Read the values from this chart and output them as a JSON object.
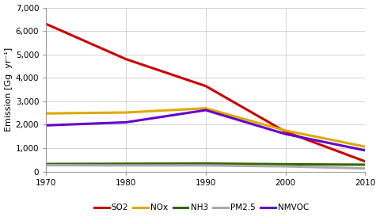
{
  "years": [
    1970,
    1980,
    1990,
    2000,
    2010
  ],
  "SO2": [
    6300,
    4800,
    3650,
    1700,
    430
  ],
  "NOx": [
    2480,
    2520,
    2700,
    1750,
    1060
  ],
  "NH3": [
    320,
    330,
    340,
    310,
    290
  ],
  "PM2.5": [
    270,
    260,
    260,
    220,
    130
  ],
  "NMVOC": [
    1970,
    2100,
    2620,
    1600,
    900
  ],
  "colors": {
    "SO2": "#cc0000",
    "NOx": "#ddaa00",
    "NH3": "#336600",
    "PM2.5": "#aaaaaa",
    "NMVOC": "#6600cc"
  },
  "ylabel": "Emission [Gg  yr⁻¹]",
  "ylim": [
    0,
    7000
  ],
  "yticks": [
    0,
    1000,
    2000,
    3000,
    4000,
    5000,
    6000,
    7000
  ],
  "ytick_labels": [
    "0",
    "1,000",
    "2,000",
    "3,000",
    "4,000",
    "5,000",
    "6,000",
    "7,000"
  ],
  "xlim": [
    1970,
    2010
  ],
  "xticks": [
    1970,
    1980,
    1990,
    2000,
    2010
  ],
  "background_color": "#ffffff",
  "plot_bg_color": "#f5f5f0",
  "grid_color": "#cccccc",
  "linewidth": 2.2,
  "tick_fontsize": 7.5,
  "label_fontsize": 8,
  "legend_fontsize": 7.5
}
